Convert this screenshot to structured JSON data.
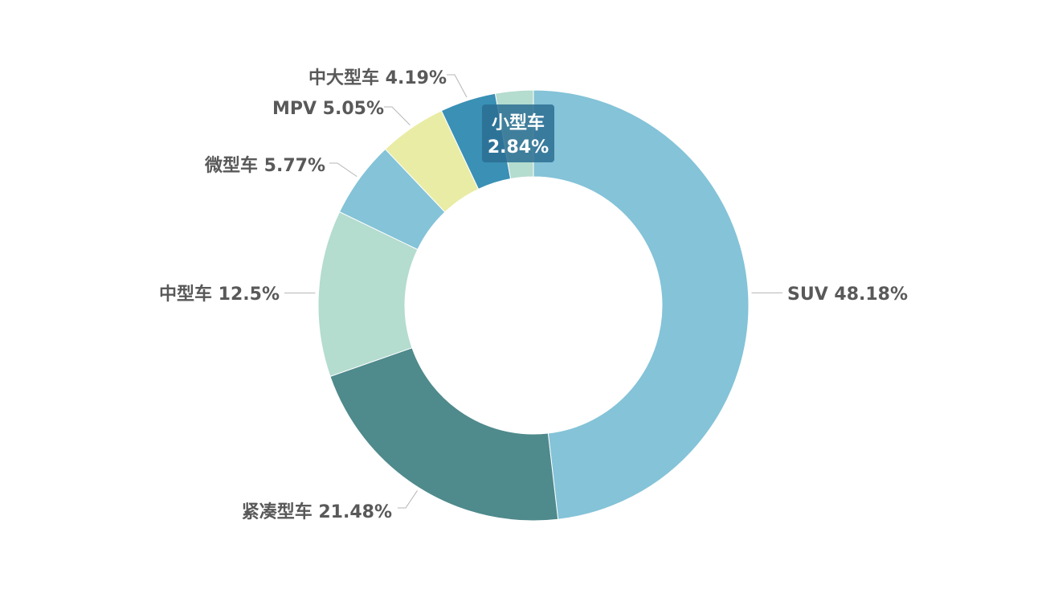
{
  "chart_data": {
    "type": "pie",
    "variant": "donut",
    "title": "",
    "slices": [
      {
        "name": "SUV",
        "value": 48.18,
        "label": "SUV 48.18%",
        "color": "#84C3D8"
      },
      {
        "name": "紧凑型车",
        "value": 21.48,
        "label": "紧凑型车 21.48%",
        "color": "#4F8A8C"
      },
      {
        "name": "中型车",
        "value": 12.5,
        "label": "中型车 12.5%",
        "color": "#B4DCCF"
      },
      {
        "name": "微型车",
        "value": 5.77,
        "label": "微型车 5.77%",
        "color": "#84C3D8"
      },
      {
        "name": "MPV",
        "value": 5.05,
        "label": "MPV 5.05%",
        "color": "#E9ECA4"
      },
      {
        "name": "中大型车",
        "value": 4.19,
        "label": "中大型车 4.19%",
        "color": "#3A90B5"
      },
      {
        "name": "小型车",
        "value": 2.84,
        "label": "小型车 2.84%",
        "label_lines": [
          "小型车",
          "2.84%"
        ],
        "color": "#B4DCCF",
        "label_position": "inside"
      }
    ],
    "legend": "none",
    "label_color": "#595959"
  }
}
